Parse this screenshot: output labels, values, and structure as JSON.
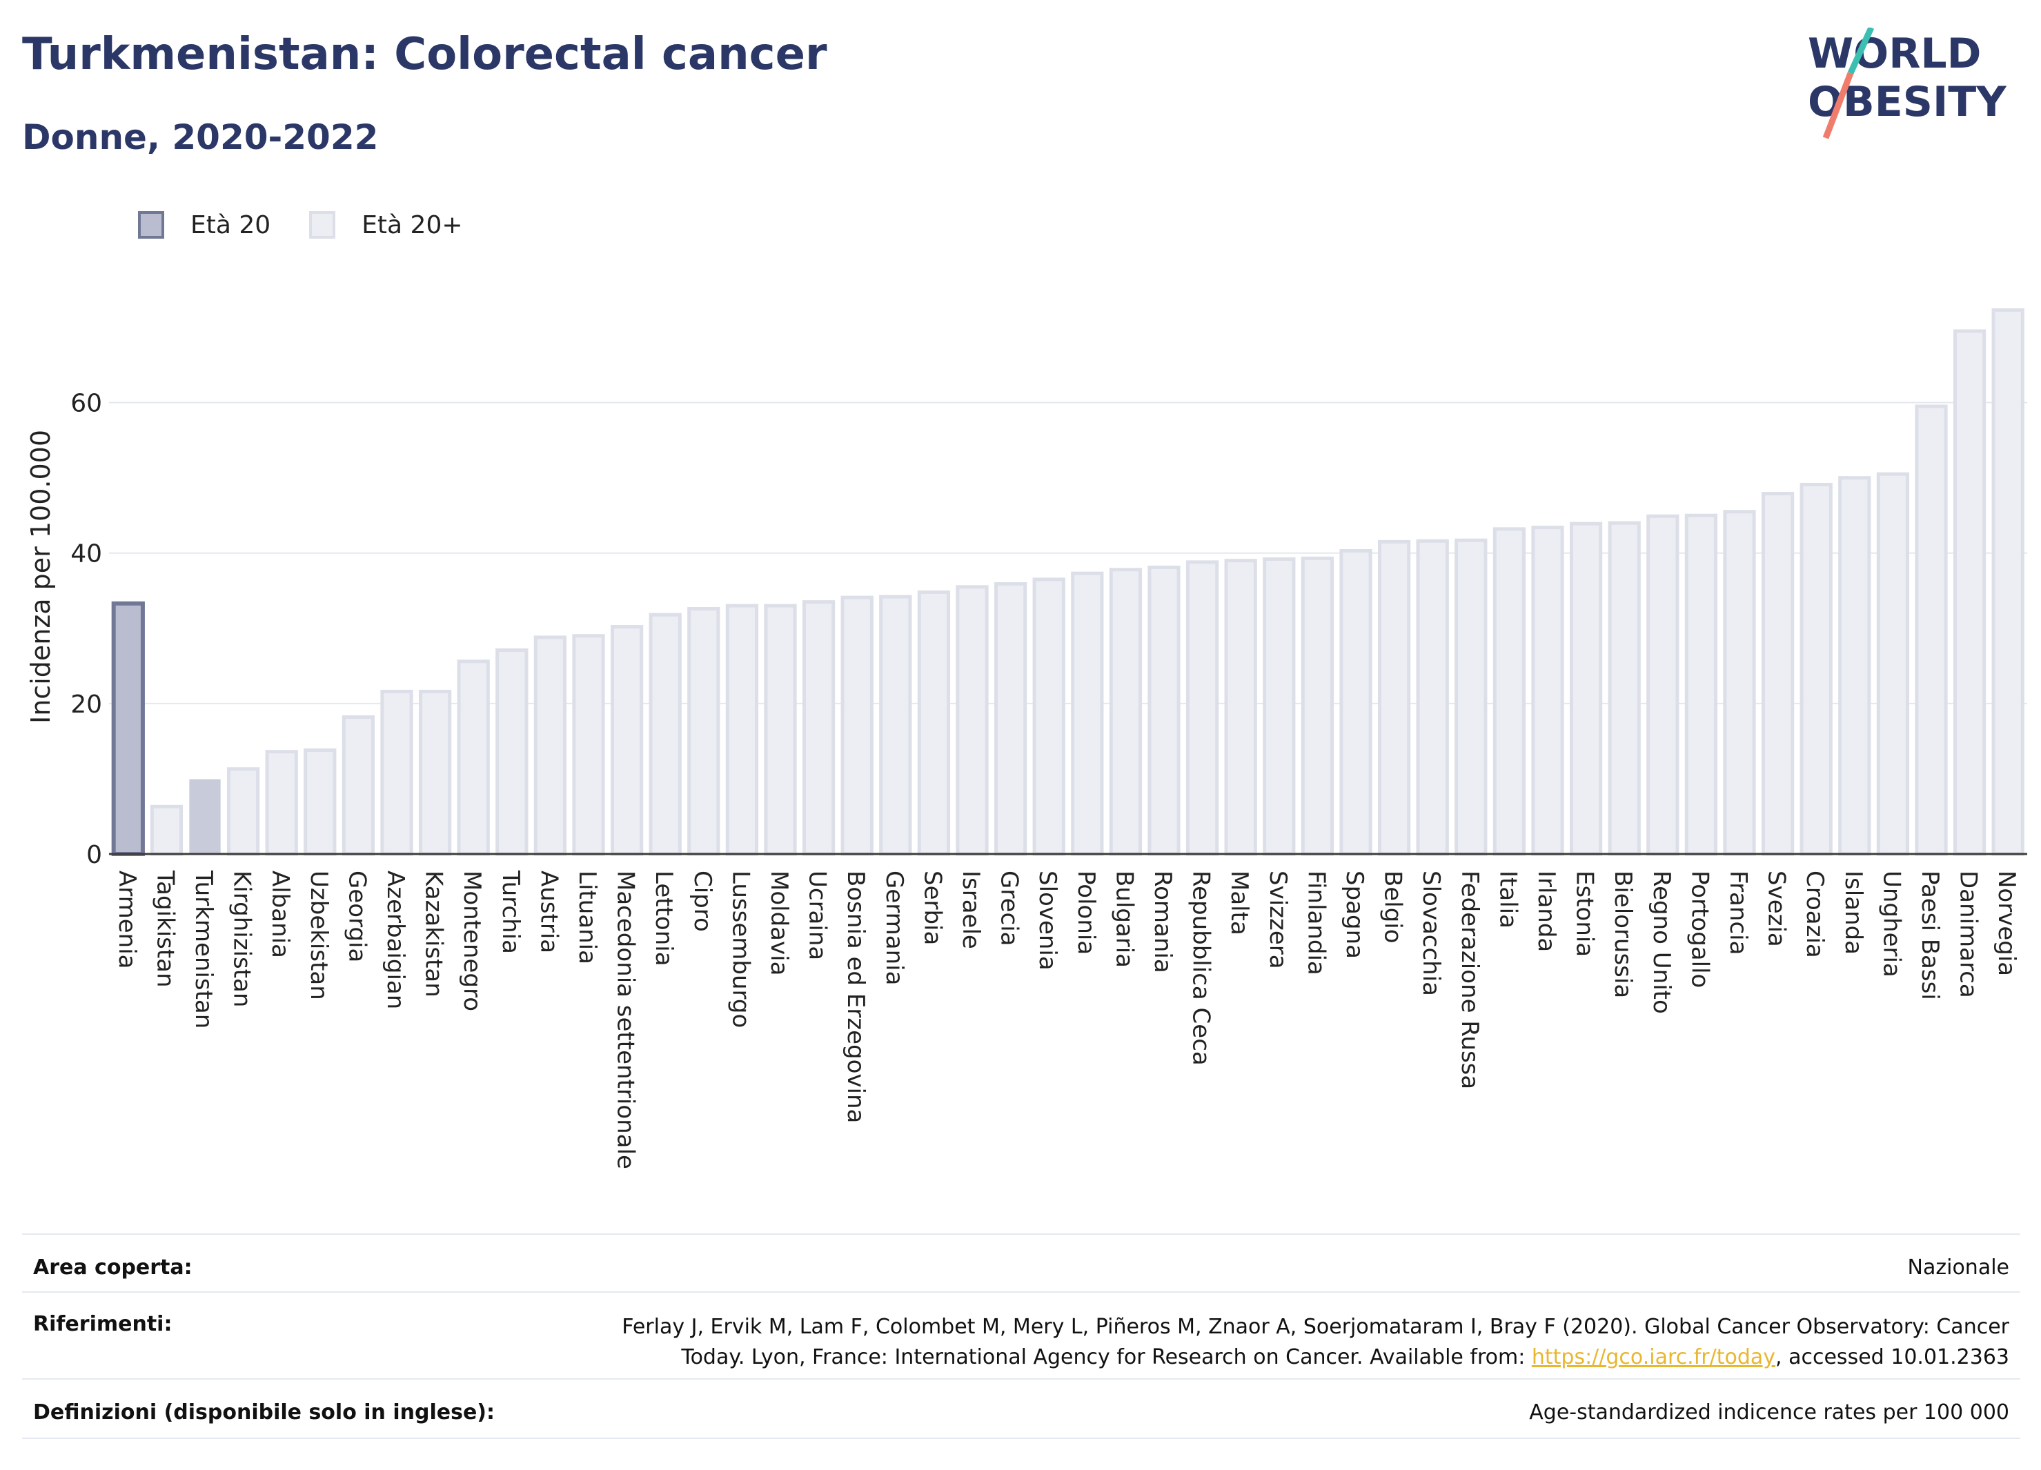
{
  "header": {
    "title": "Turkmenistan: Colorectal cancer",
    "subtitle": "Donne, 2020-2022"
  },
  "logo": {
    "line1": "WORLD",
    "line2": "OBESITY"
  },
  "colors": {
    "title": "#2b3766",
    "highlight_fill": "#b9bdcf",
    "highlight_stroke": "#717896",
    "bar_fill": "#eceef3",
    "bar_stroke": "#dcdfe8",
    "selected_fill": "#c8cbd9",
    "grid": "#e6e8ef",
    "axis": "#3c3c3c",
    "link": "#e8b730",
    "logo_teal": "#3bbfb0",
    "logo_coral": "#f07c6c"
  },
  "legend": [
    {
      "label": "Età 20",
      "style": "highlight"
    },
    {
      "label": "Età 20+",
      "style": "normal"
    }
  ],
  "chart_data": {
    "type": "bar",
    "ylabel": "Incidenza per 100.000",
    "ylim": [
      0,
      75
    ],
    "yticks": [
      0,
      20,
      40,
      60
    ],
    "grid": true,
    "legend_position": "top-left",
    "categories": [
      "Armenia",
      "Tagikistan",
      "Turkmenistan",
      "Kirghizistan",
      "Albania",
      "Uzbekistan",
      "Georgia",
      "Azerbaigian",
      "Kazakistan",
      "Montenegro",
      "Turchia",
      "Austria",
      "Lituania",
      "Macedonia settentrionale",
      "Lettonia",
      "Cipro",
      "Lussemburgo",
      "Moldavia",
      "Ucraina",
      "Bosnia ed Erzegovina",
      "Germania",
      "Serbia",
      "Israele",
      "Grecia",
      "Slovenia",
      "Polonia",
      "Bulgaria",
      "Romania",
      "Repubblica Ceca",
      "Malta",
      "Svizzera",
      "Finlandia",
      "Spagna",
      "Belgio",
      "Slovacchia",
      "Federazione Russa",
      "Italia",
      "Irlanda",
      "Estonia",
      "Bielorussia",
      "Regno Unito",
      "Portogallo",
      "Francia",
      "Svezia",
      "Croazia",
      "Islanda",
      "Ungheria",
      "Paesi Bassi",
      "Danimarca",
      "Norvegia"
    ],
    "values": [
      33.3,
      6.3,
      9.8,
      11.3,
      13.6,
      13.8,
      18.2,
      21.6,
      21.6,
      25.6,
      27.1,
      28.8,
      29.0,
      30.2,
      31.8,
      32.6,
      33.0,
      33.0,
      33.5,
      34.1,
      34.2,
      34.8,
      35.5,
      35.9,
      36.5,
      37.3,
      37.8,
      38.1,
      38.8,
      39.0,
      39.2,
      39.3,
      40.3,
      41.5,
      41.6,
      41.7,
      43.2,
      43.4,
      43.9,
      44.0,
      44.9,
      45.0,
      45.5,
      47.9,
      49.1,
      50.0,
      50.5,
      59.5,
      69.5,
      72.3
    ],
    "styles": [
      "highlight",
      "normal",
      "selected",
      "normal",
      "normal",
      "normal",
      "normal",
      "normal",
      "normal",
      "normal",
      "normal",
      "normal",
      "normal",
      "normal",
      "normal",
      "normal",
      "normal",
      "normal",
      "normal",
      "normal",
      "normal",
      "normal",
      "normal",
      "normal",
      "normal",
      "normal",
      "normal",
      "normal",
      "normal",
      "normal",
      "normal",
      "normal",
      "normal",
      "normal",
      "normal",
      "normal",
      "normal",
      "normal",
      "normal",
      "normal",
      "normal",
      "normal",
      "normal",
      "normal",
      "normal",
      "normal",
      "normal",
      "normal",
      "normal",
      "normal"
    ]
  },
  "info": {
    "area_label": "Area coperta:",
    "area_value": "Nazionale",
    "ref_label": "Riferimenti:",
    "ref_line1": "Ferlay J, Ervik M, Lam F, Colombet M, Mery L, Piñeros M, Znaor A, Soerjomataram I, Bray F (2020). Global Cancer Observatory: Cancer",
    "ref_line2_pre": "Today. Lyon, France: International Agency for Research on Cancer. Available from: ",
    "ref_link": "https://gco.iarc.fr/today",
    "ref_line2_post": ", accessed 10.01.2363",
    "def_label": "Definizioni (disponibile solo in inglese):",
    "def_value": "Age-standardized indicence rates per 100 000"
  }
}
